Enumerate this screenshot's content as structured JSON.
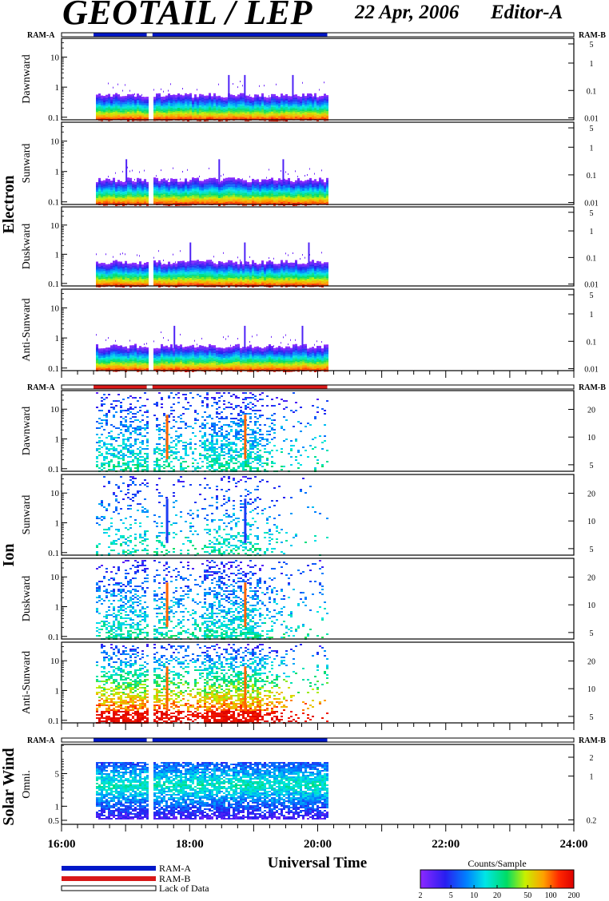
{
  "header": {
    "title": "GEOTAIL / LEP",
    "date": "22 Apr, 2006",
    "editor": "Editor-A"
  },
  "chart_data": {
    "type": "heatmap",
    "time_axis": {
      "label": "Universal Time",
      "range_hours": [
        16,
        24
      ],
      "tick_labels": [
        "16:00",
        "18:00",
        "20:00",
        "22:00",
        "24:00"
      ],
      "tick_hours": [
        16,
        18,
        20,
        22,
        24
      ]
    },
    "ram_labels": {
      "left": "RAM-A",
      "right": "RAM-B"
    },
    "data_coverage_hours": [
      16.5,
      20.15
    ],
    "data_gap_hours": [
      17.33,
      17.42
    ],
    "colorbar": {
      "title": "Counts/Sample",
      "tick_labels": [
        "2",
        "5",
        "10",
        "20",
        "50",
        "100",
        "200"
      ],
      "range": [
        2,
        200
      ],
      "scale": "log"
    },
    "legend": [
      {
        "label": "RAM-A",
        "color": "#0018c8"
      },
      {
        "label": "RAM-B",
        "color": "#d81818"
      },
      {
        "label": "Lack of Data",
        "color": "#ffffff"
      }
    ],
    "groups": [
      {
        "name": "Electron",
        "ram_bar": {
          "color": "#0018c8"
        },
        "panels": [
          {
            "ylabel": "Dawnward",
            "left_ticks": [
              "10",
              "1",
              "0.1"
            ],
            "left_values": [
              10,
              1,
              0.1
            ],
            "right_ticks": [
              "5",
              "1",
              "0.1",
              "0.01"
            ],
            "right_values": [
              5,
              1,
              0.1,
              0.01
            ],
            "intensity": "electron",
            "spikes_hours": [
              18.6,
              18.85,
              19.6
            ]
          },
          {
            "ylabel": "Sunward",
            "left_ticks": [
              "10",
              "1",
              "0.1"
            ],
            "left_values": [
              10,
              1,
              0.1
            ],
            "right_ticks": [
              "5",
              "1",
              "0.1",
              "0.01"
            ],
            "right_values": [
              5,
              1,
              0.1,
              0.01
            ],
            "intensity": "electron",
            "spikes_hours": [
              17.0,
              18.45,
              19.45
            ]
          },
          {
            "ylabel": "Duskward",
            "left_ticks": [
              "10",
              "1",
              "0.1"
            ],
            "left_values": [
              10,
              1,
              0.1
            ],
            "right_ticks": [
              "5",
              "1",
              "0.1",
              "0.01"
            ],
            "right_values": [
              5,
              1,
              0.1,
              0.01
            ],
            "intensity": "electron",
            "spikes_hours": [
              18.0,
              18.85,
              19.85
            ]
          },
          {
            "ylabel": "Anti-Sunward",
            "left_ticks": [
              "10",
              "1",
              "0.1"
            ],
            "left_values": [
              10,
              1,
              0.1
            ],
            "right_ticks": [
              "5",
              "1",
              "0.1",
              "0.01"
            ],
            "right_values": [
              5,
              1,
              0.1,
              0.01
            ],
            "intensity": "electron",
            "spikes_hours": [
              17.75,
              18.85,
              19.75
            ]
          }
        ]
      },
      {
        "name": "Ion",
        "ram_bar": {
          "color": "#d81818"
        },
        "panels": [
          {
            "ylabel": "Dawnward",
            "left_ticks": [
              "10",
              "1",
              "0.1"
            ],
            "left_values": [
              10,
              1,
              0.1
            ],
            "right_ticks": [
              "20",
              "10",
              "5"
            ],
            "right_values": [
              20,
              10,
              5
            ],
            "intensity": "ion-medium"
          },
          {
            "ylabel": "Sunward",
            "left_ticks": [
              "10",
              "1",
              "0.1"
            ],
            "left_values": [
              10,
              1,
              0.1
            ],
            "right_ticks": [
              "20",
              "10",
              "5"
            ],
            "right_values": [
              20,
              10,
              5
            ],
            "intensity": "ion-sparse"
          },
          {
            "ylabel": "Duskward",
            "left_ticks": [
              "10",
              "1",
              "0.1"
            ],
            "left_values": [
              10,
              1,
              0.1
            ],
            "right_ticks": [
              "20",
              "10",
              "5"
            ],
            "right_values": [
              20,
              10,
              5
            ],
            "intensity": "ion-medium"
          },
          {
            "ylabel": "Anti-Sunward",
            "left_ticks": [
              "10",
              "1",
              "0.1"
            ],
            "left_values": [
              10,
              1,
              0.1
            ],
            "right_ticks": [
              "20",
              "10",
              "5"
            ],
            "right_values": [
              20,
              10,
              5
            ],
            "intensity": "ion-strong"
          }
        ]
      },
      {
        "name": "Solar Wind",
        "ram_bar": {
          "color": "#0018c8"
        },
        "panels": [
          {
            "ylabel": "Omni.",
            "left_ticks": [
              "5",
              "1",
              "0.5"
            ],
            "left_values": [
              5,
              1,
              0.5
            ],
            "right_ticks": [
              "2",
              "1",
              "0.2"
            ],
            "right_values": [
              2,
              1,
              0.2
            ],
            "intensity": "solar"
          }
        ]
      }
    ]
  }
}
